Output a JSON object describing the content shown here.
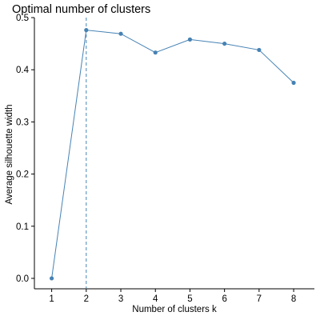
{
  "chart_data": {
    "type": "line",
    "title": "Optimal number of clusters",
    "xlabel": "Number of clusters k",
    "ylabel": "Average silhouette width",
    "x": [
      1,
      2,
      3,
      4,
      5,
      6,
      7,
      8
    ],
    "categories": [
      "1",
      "2",
      "3",
      "4",
      "5",
      "6",
      "7",
      "8"
    ],
    "series": [
      {
        "values": [
          0.0,
          0.476,
          0.469,
          0.433,
          0.458,
          0.45,
          0.438,
          0.375
        ]
      }
    ],
    "ylim": [
      -0.02,
      0.5
    ],
    "xlim": [
      0.5,
      8.6
    ],
    "yticks": [
      0.0,
      0.1,
      0.2,
      0.3,
      0.4,
      0.5
    ],
    "ytick_labels": [
      "0.0",
      "0.1",
      "0.2",
      "0.3",
      "0.4",
      "0.5"
    ],
    "xticks": [
      1,
      2,
      3,
      4,
      5,
      6,
      7,
      8
    ],
    "xtick_labels": [
      "1",
      "2",
      "3",
      "4",
      "5",
      "6",
      "7",
      "8"
    ],
    "vline_x": 2,
    "grid": false,
    "colors": {
      "series": "#4682b4",
      "vline": "#4682b4",
      "axis": "#000000",
      "text": "#000000"
    }
  }
}
